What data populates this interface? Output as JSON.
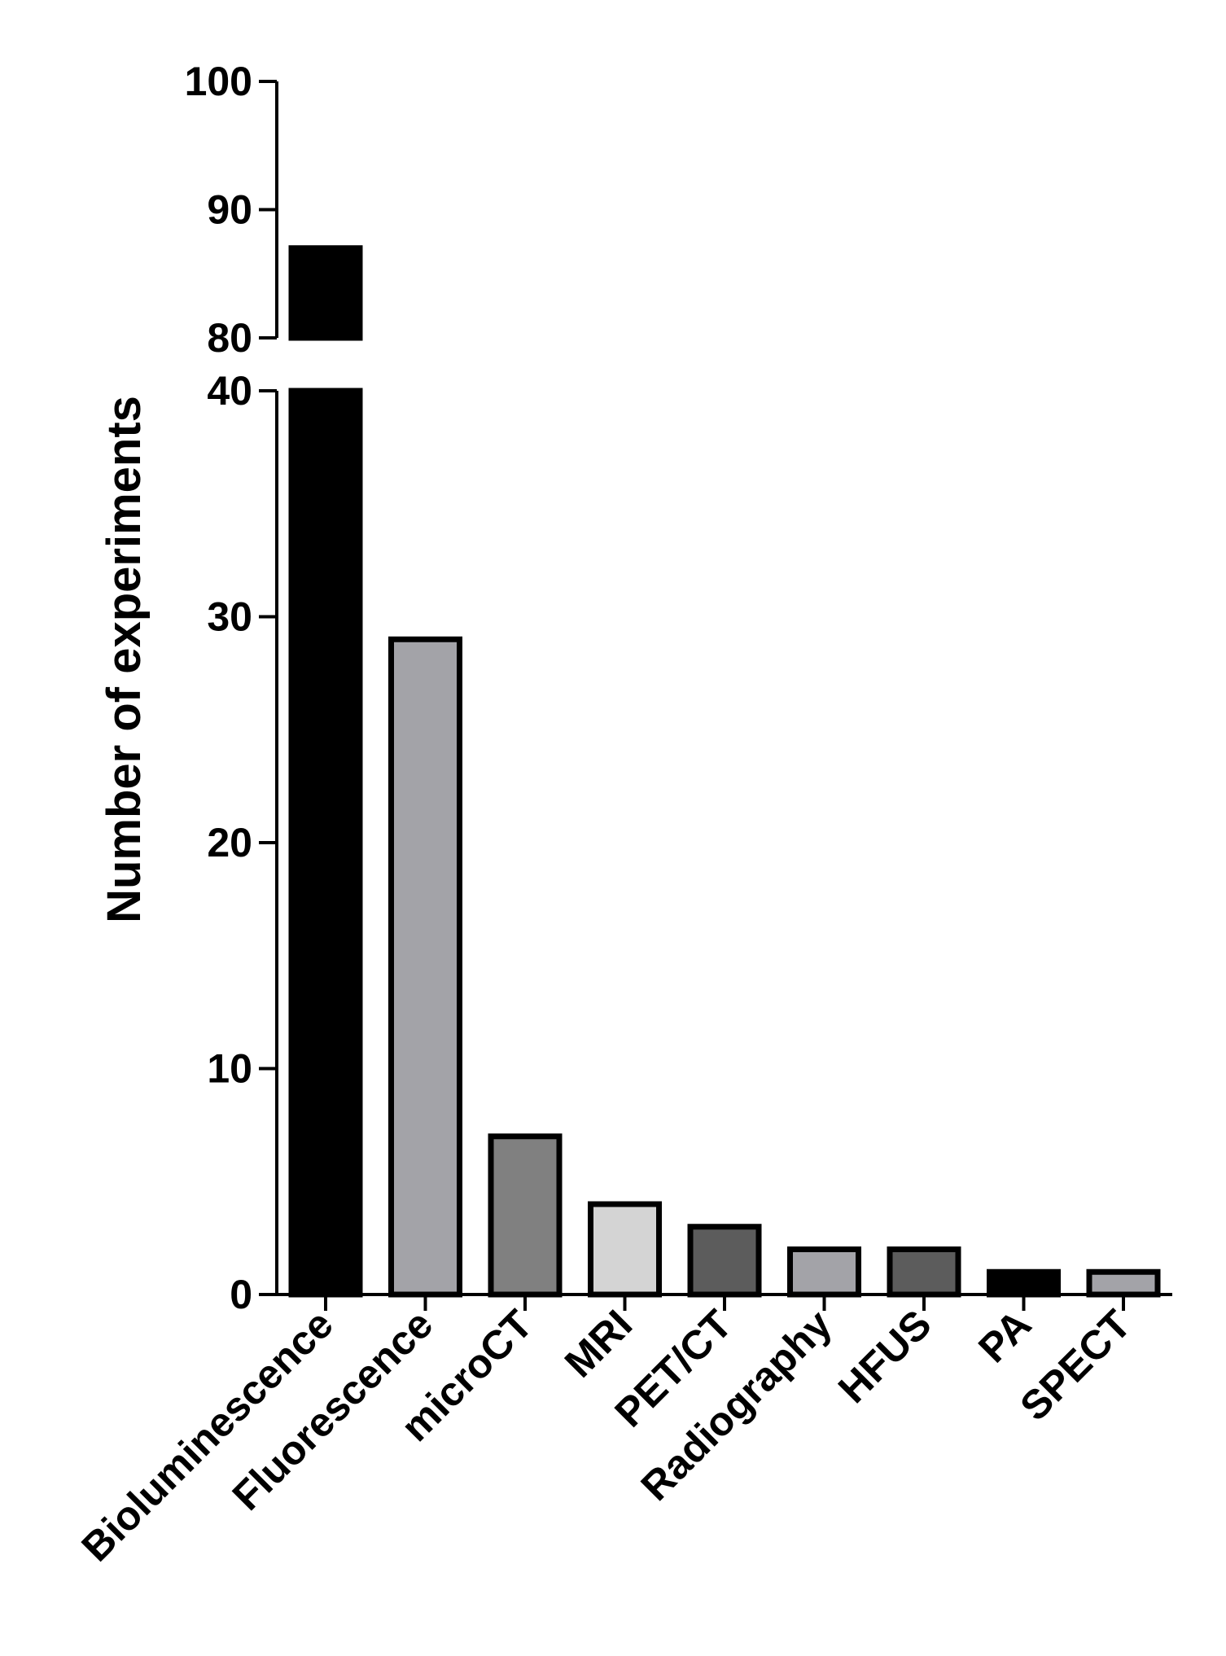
{
  "chart_data": {
    "type": "bar",
    "title": "",
    "xlabel": "",
    "ylabel": "Number of experiments",
    "categories": [
      "Bioluminescence",
      "Fluorescence",
      "microCT",
      "MRI",
      "PET/CT",
      "Radiography",
      "HFUS",
      "PA",
      "SPECT"
    ],
    "values": [
      87,
      29,
      7,
      4,
      3,
      2,
      2,
      1,
      1
    ],
    "bar_colors": [
      "#000000",
      "#a3a3a8",
      "#808080",
      "#d4d4d4",
      "#5c5c5c",
      "#a3a3a8",
      "#5c5c5c",
      "#000000",
      "#a3a3a8"
    ],
    "y_axis_break": true,
    "y_segments": [
      {
        "ylim": [
          0,
          40
        ],
        "ticks": [
          "0",
          "10",
          "20",
          "30",
          "40"
        ]
      },
      {
        "ylim": [
          80,
          100
        ],
        "ticks": [
          "80",
          "90",
          "100"
        ]
      }
    ],
    "grid": false,
    "legend": "none"
  }
}
